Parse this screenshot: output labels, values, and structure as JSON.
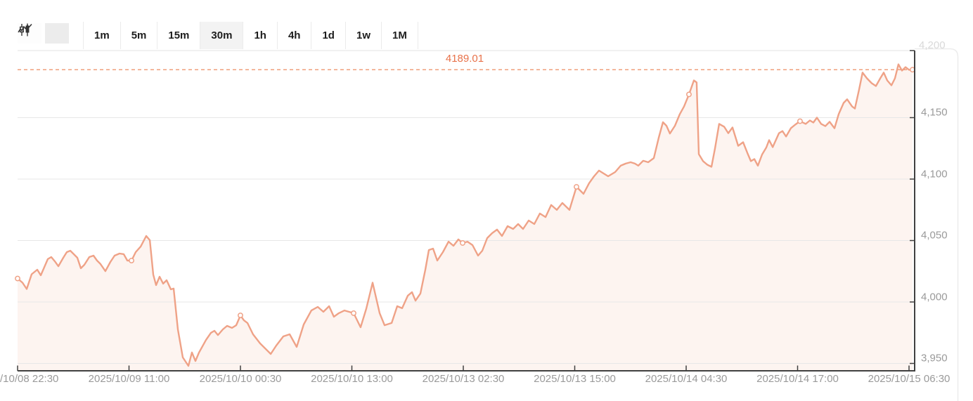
{
  "toolbar": {
    "chart_types": [
      {
        "name": "candlestick",
        "selected": false
      },
      {
        "name": "line",
        "selected": true
      }
    ],
    "timeframes": [
      {
        "label": "1m",
        "selected": false
      },
      {
        "label": "5m",
        "selected": false
      },
      {
        "label": "15m",
        "selected": false
      },
      {
        "label": "30m",
        "selected": true
      },
      {
        "label": "1h",
        "selected": false
      },
      {
        "label": "4h",
        "selected": false
      },
      {
        "label": "1d",
        "selected": false
      },
      {
        "label": "1w",
        "selected": false
      },
      {
        "label": "1M",
        "selected": false
      }
    ]
  },
  "chart_data": {
    "type": "area",
    "interval": "30m",
    "last_price": 4189.01,
    "last_price_label": "4189.01",
    "grid": true,
    "legend_position": "none",
    "y_axis": {
      "tick_labels": [
        "4,150",
        "4,100",
        "4,050",
        "4,000",
        "3,950"
      ],
      "tick_values": [
        4150,
        4100,
        4050,
        4000,
        3950
      ],
      "top_faint_label": "4,200",
      "range": [
        3944,
        4205
      ]
    },
    "x_axis": {
      "tick_labels": [
        "2025/10/08 22:30",
        "2025/10/09 11:00",
        "2025/10/10 00:30",
        "2025/10/10 13:00",
        "2025/10/13 02:30",
        "2025/10/13 15:00",
        "2025/10/14 04:30",
        "2025/10/14 17:00",
        "2025/10/15 06:30"
      ]
    },
    "colors": {
      "line": "#efa287",
      "area_fill": "rgba(239,162,135,0.12)",
      "price_line": "#f0a07c",
      "price_label": "#e8724a",
      "grid": "#e7e7e7",
      "axis": "#404040",
      "tick_text": "#9a9a9a",
      "panel_border": "#ececec"
    },
    "marker_indices": [
      0,
      27,
      53,
      71,
      92,
      113,
      135,
      162,
      190
    ],
    "series": [
      {
        "name": "price",
        "points": [
          [
            0.0,
            4019.1
          ],
          [
            0.0055,
            4015.7
          ],
          [
            0.0102,
            4010.6
          ],
          [
            0.0157,
            4022.6
          ],
          [
            0.022,
            4026.3
          ],
          [
            0.0259,
            4021.7
          ],
          [
            0.0337,
            4034.9
          ],
          [
            0.0376,
            4036.6
          ],
          [
            0.0416,
            4033.1
          ],
          [
            0.0455,
            4029.1
          ],
          [
            0.051,
            4036.0
          ],
          [
            0.0549,
            4040.6
          ],
          [
            0.0588,
            4041.7
          ],
          [
            0.0627,
            4038.9
          ],
          [
            0.0667,
            4036.0
          ],
          [
            0.0706,
            4027.4
          ],
          [
            0.0745,
            4030.3
          ],
          [
            0.08,
            4036.6
          ],
          [
            0.0847,
            4037.7
          ],
          [
            0.0886,
            4033.7
          ],
          [
            0.0925,
            4030.9
          ],
          [
            0.098,
            4025.1
          ],
          [
            0.1035,
            4032.6
          ],
          [
            0.1082,
            4037.7
          ],
          [
            0.1137,
            4039.4
          ],
          [
            0.1184,
            4038.9
          ],
          [
            0.1224,
            4033.7
          ],
          [
            0.1271,
            4033.7
          ],
          [
            0.1318,
            4040.6
          ],
          [
            0.1373,
            4045.1
          ],
          [
            0.1435,
            4053.7
          ],
          [
            0.1475,
            4050.3
          ],
          [
            0.1514,
            4022.3
          ],
          [
            0.1545,
            4013.7
          ],
          [
            0.1584,
            4020.6
          ],
          [
            0.1624,
            4014.9
          ],
          [
            0.1663,
            4017.7
          ],
          [
            0.171,
            4010.3
          ],
          [
            0.1741,
            4010.9
          ],
          [
            0.1788,
            3977.7
          ],
          [
            0.1843,
            3954.9
          ],
          [
            0.1906,
            3948.0
          ],
          [
            0.1945,
            3958.9
          ],
          [
            0.1984,
            3952.0
          ],
          [
            0.2024,
            3958.9
          ],
          [
            0.2102,
            3969.1
          ],
          [
            0.2157,
            3974.9
          ],
          [
            0.2196,
            3976.6
          ],
          [
            0.2235,
            3973.1
          ],
          [
            0.229,
            3977.7
          ],
          [
            0.2337,
            3980.6
          ],
          [
            0.2392,
            3978.9
          ],
          [
            0.2439,
            3981.1
          ],
          [
            0.2486,
            3989.1
          ],
          [
            0.2525,
            3985.1
          ],
          [
            0.2565,
            3982.9
          ],
          [
            0.2627,
            3973.7
          ],
          [
            0.2706,
            3966.3
          ],
          [
            0.2824,
            3957.7
          ],
          [
            0.2886,
            3964.6
          ],
          [
            0.2965,
            3972.0
          ],
          [
            0.3035,
            3973.7
          ],
          [
            0.3114,
            3963.4
          ],
          [
            0.3192,
            3981.7
          ],
          [
            0.3278,
            3993.1
          ],
          [
            0.3349,
            3996.0
          ],
          [
            0.3412,
            3992.0
          ],
          [
            0.3475,
            3996.6
          ],
          [
            0.3529,
            3988.0
          ],
          [
            0.3584,
            3990.9
          ],
          [
            0.3647,
            3993.1
          ],
          [
            0.3749,
            3990.9
          ],
          [
            0.3827,
            3979.4
          ],
          [
            0.389,
            3994.6
          ],
          [
            0.3961,
            4015.7
          ],
          [
            0.4039,
            3990.9
          ],
          [
            0.4094,
            3981.1
          ],
          [
            0.4173,
            3982.9
          ],
          [
            0.4235,
            3996.6
          ],
          [
            0.429,
            3994.9
          ],
          [
            0.4353,
            4005.1
          ],
          [
            0.44,
            4008.0
          ],
          [
            0.4439,
            4001.1
          ],
          [
            0.4494,
            4006.9
          ],
          [
            0.4549,
            4026.3
          ],
          [
            0.4588,
            4042.3
          ],
          [
            0.4635,
            4043.4
          ],
          [
            0.4682,
            4033.7
          ],
          [
            0.4745,
            4040.6
          ],
          [
            0.4808,
            4049.1
          ],
          [
            0.4863,
            4045.7
          ],
          [
            0.4918,
            4050.9
          ],
          [
            0.4965,
            4048.0
          ],
          [
            0.502,
            4049.1
          ],
          [
            0.5075,
            4046.3
          ],
          [
            0.5137,
            4037.7
          ],
          [
            0.5184,
            4041.7
          ],
          [
            0.5239,
            4052.0
          ],
          [
            0.5294,
            4056.0
          ],
          [
            0.5349,
            4058.9
          ],
          [
            0.5404,
            4053.7
          ],
          [
            0.5467,
            4061.7
          ],
          [
            0.5529,
            4059.4
          ],
          [
            0.5584,
            4063.4
          ],
          [
            0.5639,
            4059.4
          ],
          [
            0.5702,
            4066.3
          ],
          [
            0.5765,
            4063.4
          ],
          [
            0.5827,
            4072.0
          ],
          [
            0.589,
            4069.1
          ],
          [
            0.5953,
            4078.9
          ],
          [
            0.6016,
            4074.9
          ],
          [
            0.6078,
            4080.6
          ],
          [
            0.6157,
            4074.9
          ],
          [
            0.6235,
            4093.7
          ],
          [
            0.6314,
            4088.0
          ],
          [
            0.6376,
            4096.6
          ],
          [
            0.6431,
            4102.3
          ],
          [
            0.6486,
            4106.9
          ],
          [
            0.6588,
            4102.3
          ],
          [
            0.6667,
            4105.7
          ],
          [
            0.6729,
            4110.9
          ],
          [
            0.6784,
            4112.6
          ],
          [
            0.6839,
            4113.7
          ],
          [
            0.6886,
            4112.6
          ],
          [
            0.6925,
            4110.9
          ],
          [
            0.698,
            4114.9
          ],
          [
            0.7035,
            4113.7
          ],
          [
            0.7098,
            4117.1
          ],
          [
            0.7153,
            4133.7
          ],
          [
            0.72,
            4146.3
          ],
          [
            0.7239,
            4143.4
          ],
          [
            0.7278,
            4137.1
          ],
          [
            0.7333,
            4143.4
          ],
          [
            0.7388,
            4152.9
          ],
          [
            0.7435,
            4159.1
          ],
          [
            0.749,
            4168.9
          ],
          [
            0.7545,
            4180.3
          ],
          [
            0.7576,
            4178.6
          ],
          [
            0.76,
            4120.3
          ],
          [
            0.7647,
            4114.6
          ],
          [
            0.7694,
            4111.7
          ],
          [
            0.7741,
            4110.0
          ],
          [
            0.778,
            4124.9
          ],
          [
            0.7827,
            4144.9
          ],
          [
            0.7882,
            4142.6
          ],
          [
            0.7929,
            4137.4
          ],
          [
            0.7976,
            4142.0
          ],
          [
            0.8039,
            4127.1
          ],
          [
            0.8094,
            4130.0
          ],
          [
            0.8141,
            4121.4
          ],
          [
            0.818,
            4114.6
          ],
          [
            0.822,
            4116.3
          ],
          [
            0.8259,
            4110.9
          ],
          [
            0.8306,
            4120.0
          ],
          [
            0.8353,
            4125.7
          ],
          [
            0.8384,
            4131.7
          ],
          [
            0.8424,
            4126.0
          ],
          [
            0.8494,
            4137.4
          ],
          [
            0.8533,
            4139.1
          ],
          [
            0.8573,
            4134.6
          ],
          [
            0.8627,
            4141.4
          ],
          [
            0.8675,
            4144.3
          ],
          [
            0.8729,
            4147.1
          ],
          [
            0.8792,
            4144.9
          ],
          [
            0.8839,
            4147.7
          ],
          [
            0.8878,
            4146.0
          ],
          [
            0.8918,
            4150.0
          ],
          [
            0.8965,
            4144.9
          ],
          [
            0.9012,
            4143.1
          ],
          [
            0.9059,
            4146.6
          ],
          [
            0.9114,
            4141.4
          ],
          [
            0.9161,
            4152.9
          ],
          [
            0.9216,
            4162.0
          ],
          [
            0.9255,
            4164.9
          ],
          [
            0.931,
            4159.1
          ],
          [
            0.9341,
            4157.4
          ],
          [
            0.9388,
            4172.9
          ],
          [
            0.9427,
            4186.6
          ],
          [
            0.9475,
            4182.0
          ],
          [
            0.9529,
            4178.0
          ],
          [
            0.9576,
            4175.7
          ],
          [
            0.9624,
            4182.0
          ],
          [
            0.9663,
            4186.6
          ],
          [
            0.9702,
            4180.3
          ],
          [
            0.9749,
            4176.3
          ],
          [
            0.9788,
            4182.0
          ],
          [
            0.9827,
            4193.4
          ],
          [
            0.9867,
            4188.3
          ],
          [
            0.9906,
            4191.1
          ],
          [
            0.9945,
            4188.9
          ],
          [
            0.9984,
            4189.0
          ]
        ]
      }
    ]
  }
}
